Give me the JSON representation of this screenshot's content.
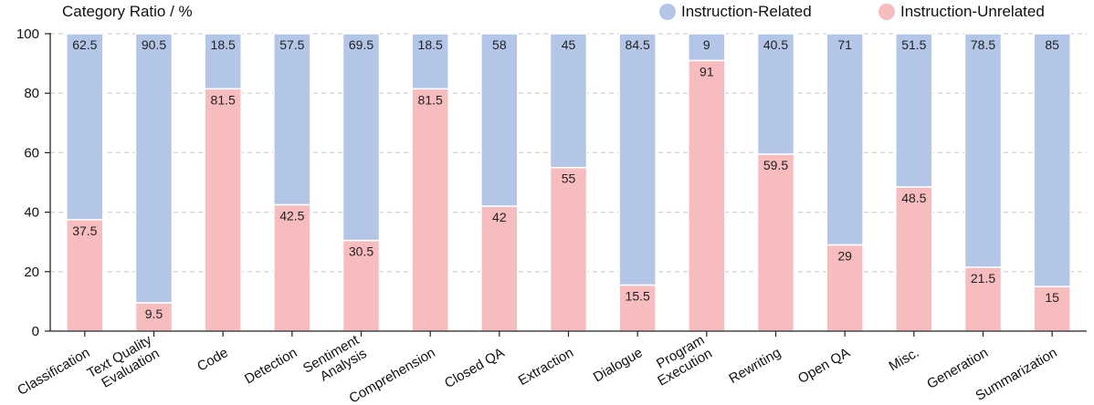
{
  "chart_data": {
    "type": "bar",
    "stacked": true,
    "ylabel": "Category Ratio / %",
    "ylim": [
      0,
      100
    ],
    "yticks": [
      "0",
      "20",
      "40",
      "60",
      "80",
      "100"
    ],
    "grid": "dashed horizontal",
    "legend_position": "top-right",
    "categories": [
      [
        "Classification"
      ],
      [
        "Text Quality",
        "Evaluation"
      ],
      [
        "Code"
      ],
      [
        "Detection"
      ],
      [
        "Sentiment",
        "Analysis"
      ],
      [
        "Comprehension"
      ],
      [
        "Closed QA"
      ],
      [
        "Extraction"
      ],
      [
        "Dialogue"
      ],
      [
        "Program",
        "Execution"
      ],
      [
        "Rewriting"
      ],
      [
        "Open QA"
      ],
      [
        "Misc."
      ],
      [
        "Generation"
      ],
      [
        "Summarization"
      ]
    ],
    "series": [
      {
        "name": "Instruction-Unrelated",
        "color": "#f7bcbe",
        "values": [
          37.5,
          9.5,
          81.5,
          42.5,
          30.5,
          81.5,
          42,
          55,
          15.5,
          91,
          59.5,
          29,
          48.5,
          21.5,
          15
        ],
        "labels": [
          "37.5",
          "9.5",
          "81.5",
          "42.5",
          "30.5",
          "81.5",
          "42",
          "55",
          "15.5",
          "91",
          "59.5",
          "29",
          "48.5",
          "21.5",
          "15"
        ]
      },
      {
        "name": "Instruction-Related",
        "color": "#b3c6e7",
        "values": [
          62.5,
          90.5,
          18.5,
          57.5,
          69.5,
          18.5,
          58,
          45,
          84.5,
          9,
          40.5,
          71,
          51.5,
          78.5,
          85
        ],
        "labels": [
          "62.5",
          "90.5",
          "18.5",
          "57.5",
          "69.5",
          "18.5",
          "58",
          "45",
          "84.5",
          "9",
          "40.5",
          "71",
          "51.5",
          "78.5",
          "85"
        ]
      }
    ]
  }
}
